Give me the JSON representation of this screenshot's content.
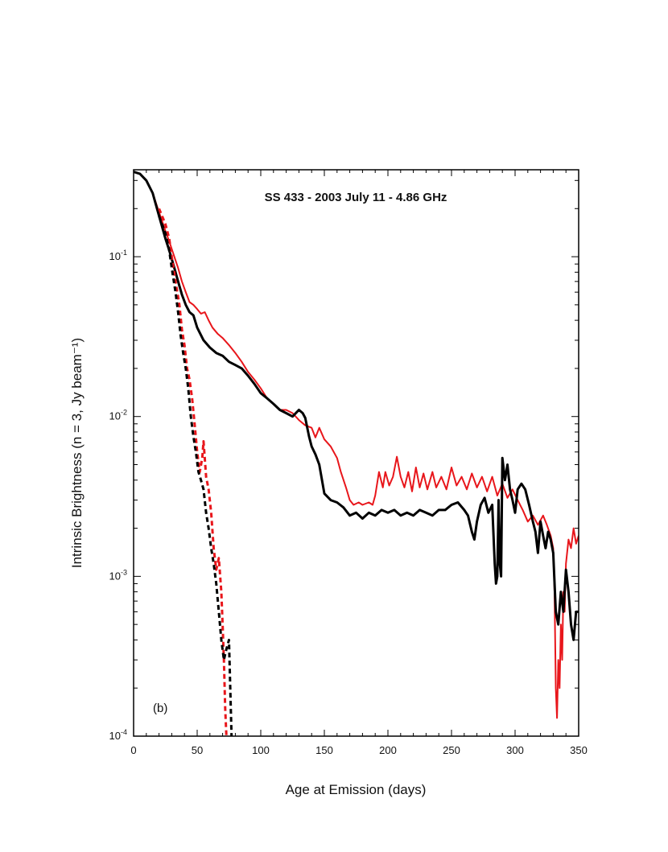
{
  "chart_data": {
    "type": "line",
    "title": "SS 433  -  2003 July 11  -  4.86 GHz",
    "panel_label": "(b)",
    "xlabel": "Age at Emission (days)",
    "ylabel": "Intrinsic Brightness (n = 3, Jy beam⁻¹)",
    "xlim": [
      0,
      350
    ],
    "ylim": [
      0.0001,
      0.35
    ],
    "yscale": "log",
    "x_ticks": [
      0,
      50,
      100,
      150,
      200,
      250,
      300,
      350
    ],
    "x_tick_labels": [
      "0",
      "50",
      "100",
      "150",
      "200",
      "250",
      "300",
      "350"
    ],
    "y_ticks": [
      0.0001,
      0.001,
      0.01,
      0.1
    ],
    "y_tick_labels": [
      {
        "base": "10",
        "exp": "-4"
      },
      {
        "base": "10",
        "exp": "-3"
      },
      {
        "base": "10",
        "exp": "-2"
      },
      {
        "base": "10",
        "exp": "-1"
      }
    ],
    "grid": false,
    "series": [
      {
        "color": "#e8161b",
        "style": "solid",
        "width": 2,
        "points": [
          [
            0,
            0.34
          ],
          [
            5,
            0.33
          ],
          [
            10,
            0.3
          ],
          [
            15,
            0.25
          ],
          [
            20,
            0.19
          ],
          [
            25,
            0.145
          ],
          [
            28,
            0.125
          ],
          [
            32,
            0.1
          ],
          [
            35,
            0.085
          ],
          [
            38,
            0.07
          ],
          [
            41,
            0.06
          ],
          [
            44,
            0.052
          ],
          [
            47,
            0.05
          ],
          [
            50,
            0.047
          ],
          [
            53,
            0.044
          ],
          [
            56,
            0.045
          ],
          [
            59,
            0.04
          ],
          [
            62,
            0.036
          ],
          [
            66,
            0.033
          ],
          [
            70,
            0.031
          ],
          [
            75,
            0.028
          ],
          [
            80,
            0.025
          ],
          [
            85,
            0.022
          ],
          [
            90,
            0.019
          ],
          [
            95,
            0.017
          ],
          [
            100,
            0.015
          ],
          [
            105,
            0.013
          ],
          [
            110,
            0.012
          ],
          [
            115,
            0.011
          ],
          [
            120,
            0.011
          ],
          [
            125,
            0.0105
          ],
          [
            130,
            0.0095
          ],
          [
            135,
            0.0088
          ],
          [
            140,
            0.0085
          ],
          [
            143,
            0.0074
          ],
          [
            146,
            0.0085
          ],
          [
            150,
            0.0072
          ],
          [
            155,
            0.0065
          ],
          [
            160,
            0.0055
          ],
          [
            163,
            0.0045
          ],
          [
            167,
            0.0036
          ],
          [
            170,
            0.003
          ],
          [
            173,
            0.0028
          ],
          [
            177,
            0.0029
          ],
          [
            180,
            0.0028
          ],
          [
            185,
            0.0029
          ],
          [
            188,
            0.0028
          ],
          [
            190,
            0.0032
          ],
          [
            193,
            0.0045
          ],
          [
            196,
            0.0036
          ],
          [
            198,
            0.0045
          ],
          [
            201,
            0.0037
          ],
          [
            204,
            0.0042
          ],
          [
            207,
            0.0056
          ],
          [
            210,
            0.0042
          ],
          [
            213,
            0.0036
          ],
          [
            216,
            0.0045
          ],
          [
            219,
            0.0034
          ],
          [
            222,
            0.0048
          ],
          [
            225,
            0.0036
          ],
          [
            228,
            0.0044
          ],
          [
            231,
            0.0035
          ],
          [
            235,
            0.0045
          ],
          [
            238,
            0.0036
          ],
          [
            242,
            0.0042
          ],
          [
            246,
            0.0035
          ],
          [
            250,
            0.0048
          ],
          [
            254,
            0.0037
          ],
          [
            258,
            0.0042
          ],
          [
            262,
            0.0035
          ],
          [
            266,
            0.0044
          ],
          [
            270,
            0.0036
          ],
          [
            274,
            0.0042
          ],
          [
            278,
            0.0034
          ],
          [
            282,
            0.0042
          ],
          [
            286,
            0.0032
          ],
          [
            290,
            0.0038
          ],
          [
            294,
            0.0031
          ],
          [
            298,
            0.0035
          ],
          [
            302,
            0.003
          ],
          [
            306,
            0.0026
          ],
          [
            310,
            0.0022
          ],
          [
            314,
            0.0024
          ],
          [
            318,
            0.0021
          ],
          [
            322,
            0.0024
          ],
          [
            325,
            0.0021
          ],
          [
            328,
            0.0018
          ],
          [
            330,
            0.0015
          ],
          [
            331,
            0.0008
          ],
          [
            332,
            0.0002
          ],
          [
            333,
            0.00013
          ],
          [
            334,
            0.0003
          ],
          [
            335,
            0.0002
          ],
          [
            336,
            0.0005
          ],
          [
            337,
            0.0003
          ],
          [
            338,
            0.0008
          ],
          [
            339,
            0.0006
          ],
          [
            340,
            0.0012
          ],
          [
            342,
            0.0017
          ],
          [
            344,
            0.0015
          ],
          [
            346,
            0.002
          ],
          [
            348,
            0.0016
          ],
          [
            350,
            0.0018
          ]
        ]
      },
      {
        "color": "#000000",
        "style": "solid",
        "width": 3,
        "points": [
          [
            0,
            0.34
          ],
          [
            5,
            0.33
          ],
          [
            10,
            0.3
          ],
          [
            15,
            0.25
          ],
          [
            20,
            0.18
          ],
          [
            25,
            0.13
          ],
          [
            28,
            0.11
          ],
          [
            32,
            0.085
          ],
          [
            35,
            0.07
          ],
          [
            38,
            0.058
          ],
          [
            41,
            0.05
          ],
          [
            44,
            0.045
          ],
          [
            47,
            0.043
          ],
          [
            50,
            0.036
          ],
          [
            55,
            0.03
          ],
          [
            60,
            0.027
          ],
          [
            65,
            0.025
          ],
          [
            70,
            0.024
          ],
          [
            75,
            0.022
          ],
          [
            80,
            0.021
          ],
          [
            85,
            0.02
          ],
          [
            90,
            0.018
          ],
          [
            95,
            0.016
          ],
          [
            100,
            0.014
          ],
          [
            105,
            0.013
          ],
          [
            110,
            0.012
          ],
          [
            115,
            0.011
          ],
          [
            120,
            0.0105
          ],
          [
            125,
            0.01
          ],
          [
            130,
            0.011
          ],
          [
            133,
            0.0105
          ],
          [
            135,
            0.0098
          ],
          [
            138,
            0.0075
          ],
          [
            140,
            0.0065
          ],
          [
            143,
            0.0058
          ],
          [
            146,
            0.005
          ],
          [
            150,
            0.0033
          ],
          [
            155,
            0.003
          ],
          [
            160,
            0.0029
          ],
          [
            165,
            0.0027
          ],
          [
            170,
            0.0024
          ],
          [
            175,
            0.0025
          ],
          [
            180,
            0.0023
          ],
          [
            185,
            0.0025
          ],
          [
            190,
            0.0024
          ],
          [
            195,
            0.0026
          ],
          [
            200,
            0.0025
          ],
          [
            205,
            0.0026
          ],
          [
            210,
            0.0024
          ],
          [
            215,
            0.0025
          ],
          [
            220,
            0.0024
          ],
          [
            225,
            0.0026
          ],
          [
            230,
            0.0025
          ],
          [
            235,
            0.0024
          ],
          [
            240,
            0.0026
          ],
          [
            245,
            0.0026
          ],
          [
            250,
            0.0028
          ],
          [
            255,
            0.0029
          ],
          [
            260,
            0.0026
          ],
          [
            263,
            0.0024
          ],
          [
            266,
            0.0019
          ],
          [
            268,
            0.0017
          ],
          [
            270,
            0.0022
          ],
          [
            273,
            0.0028
          ],
          [
            276,
            0.0031
          ],
          [
            279,
            0.0025
          ],
          [
            282,
            0.0028
          ],
          [
            284,
            0.0012
          ],
          [
            285,
            0.0009
          ],
          [
            286,
            0.001
          ],
          [
            287,
            0.003
          ],
          [
            288,
            0.0012
          ],
          [
            289,
            0.001
          ],
          [
            290,
            0.0055
          ],
          [
            292,
            0.004
          ],
          [
            294,
            0.005
          ],
          [
            296,
            0.0035
          ],
          [
            298,
            0.003
          ],
          [
            300,
            0.0025
          ],
          [
            302,
            0.0035
          ],
          [
            305,
            0.0038
          ],
          [
            308,
            0.0035
          ],
          [
            311,
            0.0028
          ],
          [
            314,
            0.0022
          ],
          [
            316,
            0.0019
          ],
          [
            318,
            0.0014
          ],
          [
            320,
            0.0022
          ],
          [
            322,
            0.0018
          ],
          [
            324,
            0.0015
          ],
          [
            326,
            0.0019
          ],
          [
            328,
            0.0017
          ],
          [
            330,
            0.0014
          ],
          [
            332,
            0.0006
          ],
          [
            334,
            0.0005
          ],
          [
            336,
            0.0008
          ],
          [
            338,
            0.0006
          ],
          [
            340,
            0.0011
          ],
          [
            342,
            0.0008
          ],
          [
            344,
            0.0005
          ],
          [
            346,
            0.0004
          ],
          [
            348,
            0.0006
          ],
          [
            350,
            0.0006
          ]
        ]
      },
      {
        "color": "#e8161b",
        "style": "dashed",
        "width": 3,
        "points": [
          [
            20,
            0.2
          ],
          [
            25,
            0.16
          ],
          [
            28,
            0.13
          ],
          [
            30,
            0.1
          ],
          [
            33,
            0.07
          ],
          [
            36,
            0.05
          ],
          [
            38,
            0.035
          ],
          [
            40,
            0.028
          ],
          [
            42,
            0.02
          ],
          [
            44,
            0.017
          ],
          [
            46,
            0.013
          ],
          [
            48,
            0.009
          ],
          [
            50,
            0.006
          ],
          [
            52,
            0.0045
          ],
          [
            54,
            0.0055
          ],
          [
            55,
            0.007
          ],
          [
            57,
            0.0042
          ],
          [
            59,
            0.0035
          ],
          [
            61,
            0.0025
          ],
          [
            63,
            0.0015
          ],
          [
            65,
            0.0011
          ],
          [
            67,
            0.0013
          ],
          [
            69,
            0.0008
          ],
          [
            70,
            0.0005
          ],
          [
            71,
            0.0003
          ],
          [
            72,
            0.00015
          ],
          [
            73,
            0.0001
          ]
        ]
      },
      {
        "color": "#000000",
        "style": "dashed",
        "width": 3,
        "points": [
          [
            20,
            0.18
          ],
          [
            25,
            0.14
          ],
          [
            28,
            0.11
          ],
          [
            30,
            0.085
          ],
          [
            33,
            0.06
          ],
          [
            35,
            0.045
          ],
          [
            37,
            0.032
          ],
          [
            39,
            0.025
          ],
          [
            41,
            0.02
          ],
          [
            43,
            0.015
          ],
          [
            45,
            0.01
          ],
          [
            47,
            0.0075
          ],
          [
            49,
            0.006
          ],
          [
            51,
            0.0045
          ],
          [
            53,
            0.004
          ],
          [
            55,
            0.0035
          ],
          [
            57,
            0.0025
          ],
          [
            59,
            0.002
          ],
          [
            61,
            0.0015
          ],
          [
            63,
            0.0012
          ],
          [
            65,
            0.0009
          ],
          [
            67,
            0.0006
          ],
          [
            69,
            0.0004
          ],
          [
            71,
            0.0003
          ],
          [
            73,
            0.00035
          ],
          [
            75,
            0.0004
          ],
          [
            77,
            0.0001
          ]
        ]
      }
    ]
  }
}
